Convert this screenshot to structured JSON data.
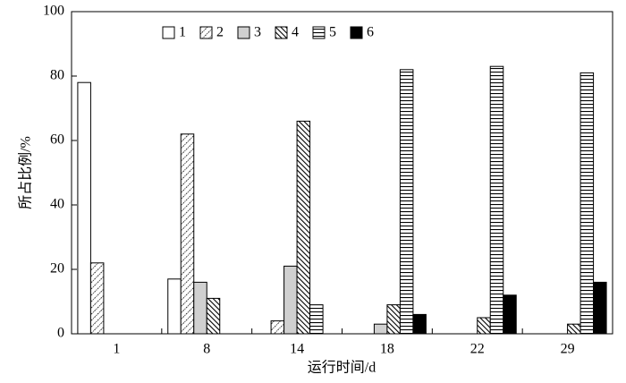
{
  "chart_data": {
    "type": "bar",
    "x_label": "运行时间/d",
    "y_label": "所占比例/%",
    "categories": [
      "1",
      "8",
      "14",
      "18",
      "22",
      "29"
    ],
    "series": [
      {
        "name": "1",
        "pattern": "white",
        "values": [
          78,
          17,
          0,
          0,
          0,
          0
        ]
      },
      {
        "name": "2",
        "pattern": "dotted-diagonal",
        "values": [
          22,
          62,
          4,
          0,
          0,
          0
        ]
      },
      {
        "name": "3",
        "pattern": "gray",
        "values": [
          0,
          16,
          21,
          3,
          0,
          0
        ]
      },
      {
        "name": "4",
        "pattern": "dense-diagonal",
        "values": [
          0,
          11,
          66,
          9,
          5,
          3
        ]
      },
      {
        "name": "5",
        "pattern": "horizontal",
        "values": [
          0,
          0,
          9,
          82,
          83,
          81
        ]
      },
      {
        "name": "6",
        "pattern": "black",
        "values": [
          0,
          0,
          0,
          6,
          12,
          16
        ]
      }
    ],
    "ylim": [
      0,
      100
    ],
    "yticks": [
      0,
      20,
      40,
      60,
      80,
      100
    ]
  }
}
